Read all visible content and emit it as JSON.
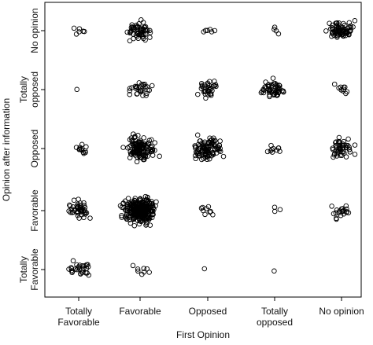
{
  "chart_data": {
    "type": "scatter",
    "jitter": true,
    "grid": false,
    "xlabel": "First Opinion",
    "ylabel": "Opinion after information",
    "x_categories": [
      [
        "Totally",
        "Favorable"
      ],
      [
        "Favorable"
      ],
      [
        "Opposed"
      ],
      [
        "Totally",
        "opposed"
      ],
      [
        "No opinion"
      ]
    ],
    "y_categories": [
      [
        "Totally",
        "Favorable"
      ],
      [
        "Favorable"
      ],
      [
        "Opposed"
      ],
      [
        "Totally",
        "opposed"
      ],
      [
        "No opinion"
      ]
    ],
    "point_color": "#000000",
    "cell_counts": [
      {
        "first": "Totally Favorable",
        "after": "Totally Favorable",
        "count": 30
      },
      {
        "first": "Totally Favorable",
        "after": "Favorable",
        "count": 45
      },
      {
        "first": "Totally Favorable",
        "after": "Opposed",
        "count": 12
      },
      {
        "first": "Totally Favorable",
        "after": "Totally opposed",
        "count": 1
      },
      {
        "first": "Totally Favorable",
        "after": "No opinion",
        "count": 6
      },
      {
        "first": "Favorable",
        "after": "Totally Favorable",
        "count": 8
      },
      {
        "first": "Favorable",
        "after": "Favorable",
        "count": 300
      },
      {
        "first": "Favorable",
        "after": "Opposed",
        "count": 130
      },
      {
        "first": "Favorable",
        "after": "Totally opposed",
        "count": 30
      },
      {
        "first": "Favorable",
        "after": "No opinion",
        "count": 60
      },
      {
        "first": "Opposed",
        "after": "Totally Favorable",
        "count": 1
      },
      {
        "first": "Opposed",
        "after": "Favorable",
        "count": 9
      },
      {
        "first": "Opposed",
        "after": "Opposed",
        "count": 100
      },
      {
        "first": "Opposed",
        "after": "Totally opposed",
        "count": 35
      },
      {
        "first": "Opposed",
        "after": "No opinion",
        "count": 6
      },
      {
        "first": "Totally opposed",
        "after": "Totally Favorable",
        "count": 1
      },
      {
        "first": "Totally opposed",
        "after": "Favorable",
        "count": 3
      },
      {
        "first": "Totally opposed",
        "after": "Opposed",
        "count": 10
      },
      {
        "first": "Totally opposed",
        "after": "Totally opposed",
        "count": 55
      },
      {
        "first": "Totally opposed",
        "after": "No opinion",
        "count": 4
      },
      {
        "first": "No opinion",
        "after": "Totally Favorable",
        "count": 0
      },
      {
        "first": "No opinion",
        "after": "Favorable",
        "count": 20
      },
      {
        "first": "No opinion",
        "after": "Opposed",
        "count": 50
      },
      {
        "first": "No opinion",
        "after": "Totally opposed",
        "count": 10
      },
      {
        "first": "No opinion",
        "after": "No opinion",
        "count": 80
      }
    ]
  }
}
